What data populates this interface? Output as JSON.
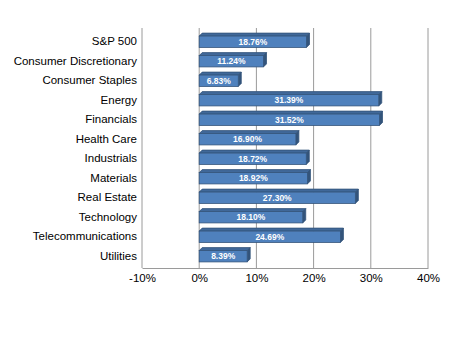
{
  "chart_data": {
    "type": "bar",
    "orientation": "horizontal",
    "categories": [
      "S&P 500",
      "Consumer Discretionary",
      "Consumer Staples",
      "Energy",
      "Financials",
      "Health Care",
      "Industrials",
      "Materials",
      "Real Estate",
      "Technology",
      "Telecommunications",
      "Utilities"
    ],
    "values": [
      18.76,
      11.24,
      6.83,
      31.39,
      31.52,
      16.9,
      18.72,
      18.92,
      27.3,
      18.1,
      24.69,
      8.39
    ],
    "value_labels": [
      "18.76%",
      "11.24%",
      "6.83%",
      "31.39%",
      "31.52%",
      "16.90%",
      "18.72%",
      "18.92%",
      "27.30%",
      "18.10%",
      "24.69%",
      "8.39%"
    ],
    "color": "#4f81bd",
    "xlim": [
      -10,
      40
    ],
    "xticks": [
      {
        "value": -10,
        "label": "-10%"
      },
      {
        "value": 0,
        "label": "0%"
      },
      {
        "value": 10,
        "label": "10%"
      },
      {
        "value": 20,
        "label": "20%"
      },
      {
        "value": 30,
        "label": "30%"
      },
      {
        "value": 40,
        "label": "40%"
      }
    ],
    "grid": true,
    "data_labels": true
  }
}
